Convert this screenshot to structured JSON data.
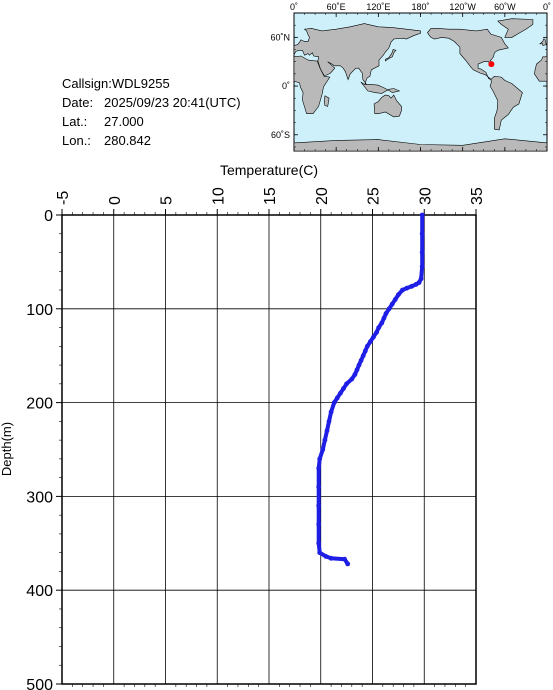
{
  "info": {
    "callsign_label": "Callsign:",
    "callsign": "WDL9255",
    "date_label": "Date:",
    "date": "2025/09/23 20:41(UTC)",
    "lat_label": "Lat.:",
    "lat": "27.000",
    "lon_label": "Lon.:",
    "lon": "280.842"
  },
  "map": {
    "top_ticks": [
      "0˚",
      "60˚E",
      "120˚E",
      "180˚",
      "120˚W",
      "60˚W",
      "0˚"
    ],
    "lat_ticks": [
      "60˚N",
      "0˚",
      "60˚S"
    ],
    "ocean_color": "#cdf0fa",
    "land_color": "#b9b9b9",
    "marker_color": "#ff0000",
    "marker": {
      "lon": 280.842,
      "lat": 27.0
    }
  },
  "chart_data": {
    "type": "line",
    "xlabel": "Temperature(C)",
    "ylabel": "Depth(m)",
    "xlim": [
      -5,
      35
    ],
    "ylim": [
      0,
      500
    ],
    "x_ticks": [
      "-5",
      "0",
      "5",
      "10",
      "15",
      "20",
      "25",
      "30",
      "35"
    ],
    "y_ticks": [
      "0",
      "100",
      "200",
      "300",
      "400",
      "500"
    ],
    "grid": true,
    "line_color": "#1e1ee6",
    "series": [
      {
        "points": [
          [
            29.8,
            0
          ],
          [
            29.8,
            20
          ],
          [
            29.8,
            40
          ],
          [
            29.8,
            55
          ],
          [
            29.7,
            68
          ],
          [
            29.5,
            72
          ],
          [
            29.2,
            74
          ],
          [
            28.8,
            76
          ],
          [
            28.3,
            78
          ],
          [
            27.9,
            80
          ],
          [
            27.5,
            85
          ],
          [
            27.2,
            90
          ],
          [
            26.9,
            95
          ],
          [
            26.6,
            100
          ],
          [
            26.3,
            105
          ],
          [
            26.1,
            110
          ],
          [
            25.9,
            115
          ],
          [
            25.6,
            120
          ],
          [
            25.4,
            125
          ],
          [
            25.1,
            130
          ],
          [
            24.8,
            135
          ],
          [
            24.5,
            140
          ],
          [
            24.3,
            145
          ],
          [
            24.1,
            150
          ],
          [
            23.9,
            155
          ],
          [
            23.7,
            160
          ],
          [
            23.5,
            165
          ],
          [
            23.3,
            170
          ],
          [
            23.0,
            175
          ],
          [
            22.5,
            180
          ],
          [
            22.2,
            185
          ],
          [
            21.9,
            190
          ],
          [
            21.6,
            195
          ],
          [
            21.3,
            200
          ],
          [
            21.0,
            210
          ],
          [
            20.8,
            220
          ],
          [
            20.6,
            230
          ],
          [
            20.4,
            240
          ],
          [
            20.2,
            250
          ],
          [
            19.9,
            260
          ],
          [
            19.8,
            270
          ],
          [
            19.8,
            290
          ],
          [
            19.8,
            310
          ],
          [
            19.8,
            330
          ],
          [
            19.8,
            350
          ],
          [
            19.9,
            360
          ],
          [
            20.5,
            364
          ],
          [
            21.0,
            366
          ],
          [
            22.3,
            367
          ],
          [
            22.6,
            372
          ]
        ]
      }
    ]
  }
}
